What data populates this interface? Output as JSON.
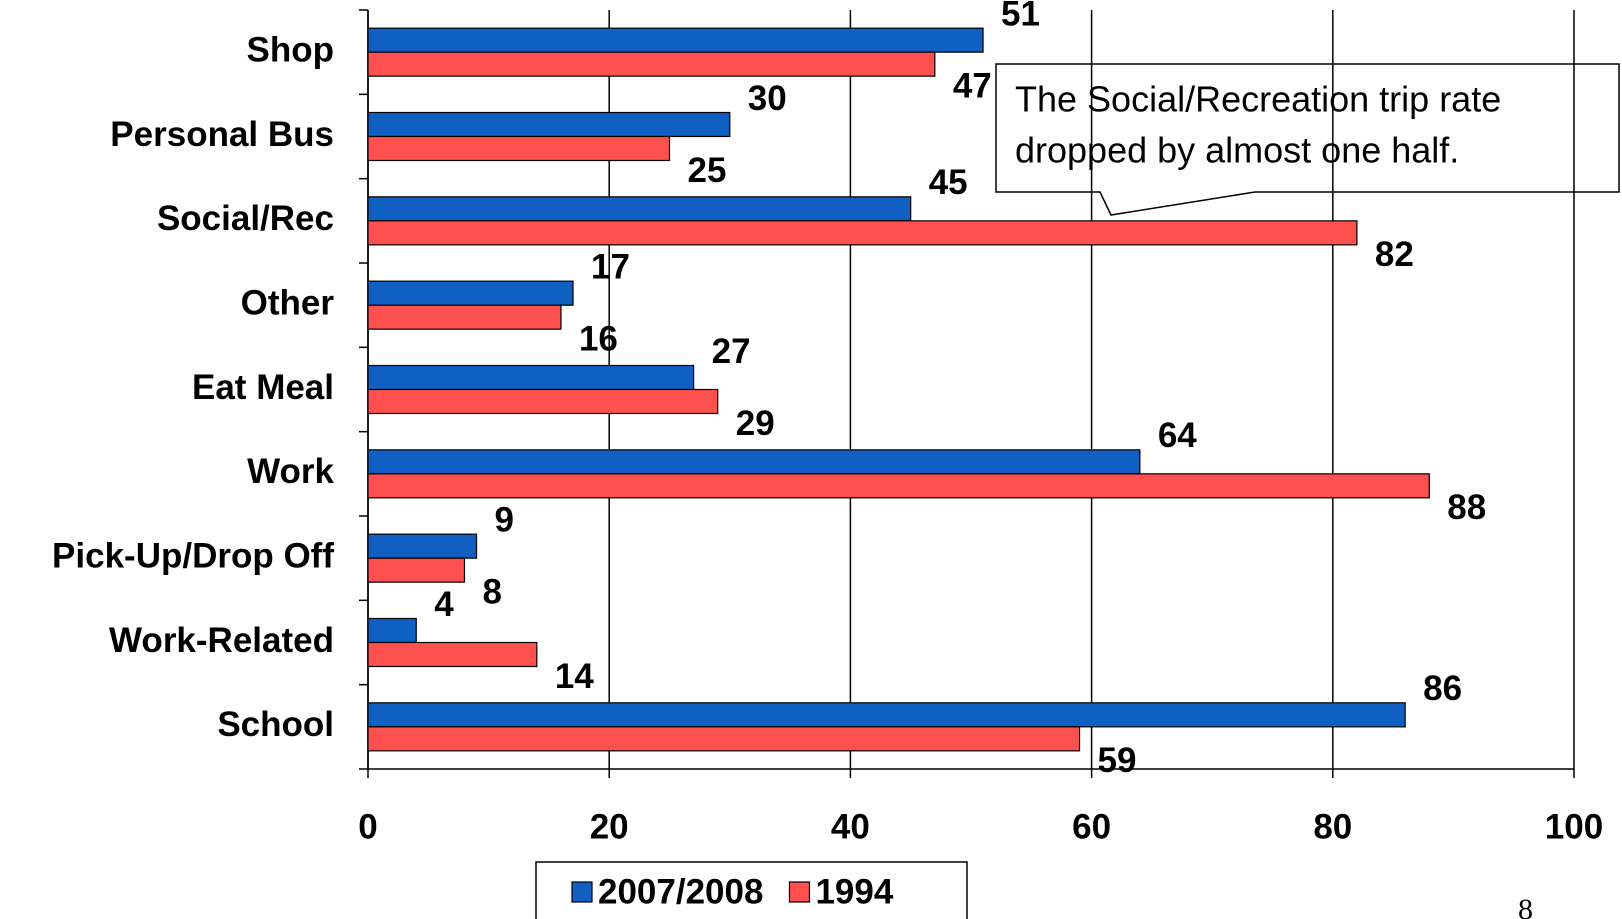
{
  "chart_data": {
    "type": "bar",
    "orientation": "horizontal",
    "categories": [
      "Shop",
      "Personal Bus",
      "Social/Rec",
      "Other",
      "Eat Meal",
      "Work",
      "Pick-Up/Drop Off",
      "Work-Related",
      "School"
    ],
    "series": [
      {
        "name": "2007/2008",
        "color": "#1060c4",
        "values": [
          51,
          30,
          45,
          17,
          27,
          64,
          9,
          4,
          86
        ]
      },
      {
        "name": "1994",
        "color": "#ff5050",
        "values": [
          47,
          25,
          82,
          16,
          29,
          88,
          8,
          14,
          59
        ]
      }
    ],
    "xlim": [
      0,
      100
    ],
    "xticks": [
      0,
      20,
      40,
      60,
      80,
      100
    ],
    "grid": true,
    "legend": "bottom",
    "annotation": [
      "The Social/Recreation trip rate",
      "dropped by almost one half."
    ],
    "page_number": "8"
  }
}
